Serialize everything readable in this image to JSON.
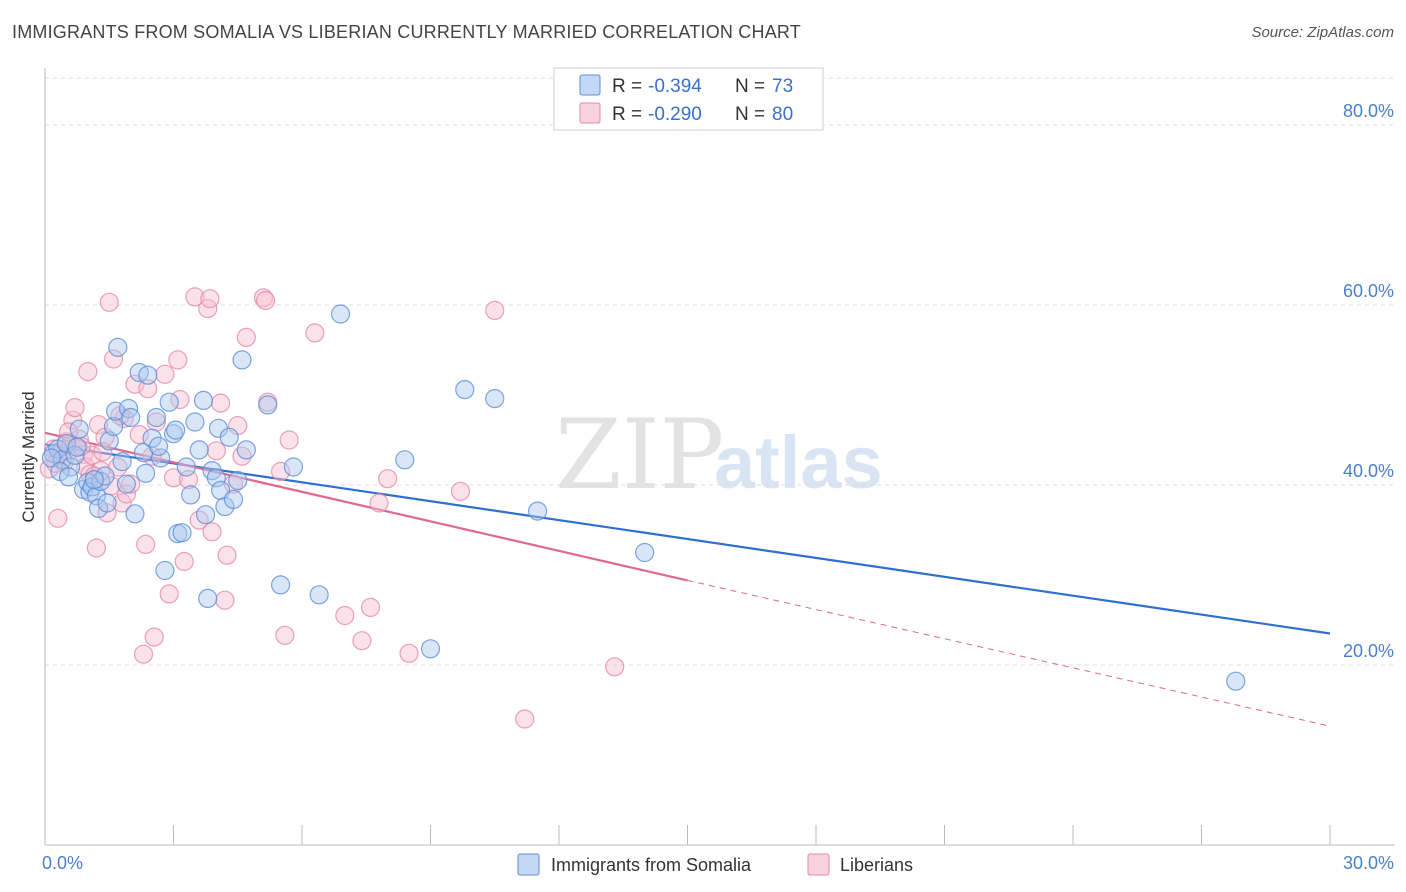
{
  "title": "IMMIGRANTS FROM SOMALIA VS LIBERIAN CURRENTLY MARRIED CORRELATION CHART",
  "source": "Source: ZipAtlas.com",
  "watermark": {
    "zip": "ZIP",
    "atlas": "atlas"
  },
  "colors": {
    "somalia_fill": "#aac8f0",
    "somalia_stroke": "#5b8fd6",
    "somalia_line": "#2f6fd0",
    "liberia_fill": "#f6bfd1",
    "liberia_stroke": "#e48aa8",
    "liberia_line": "#e0688f",
    "grid": "#dddddd",
    "tick_text": "#4a7fd0"
  },
  "legend": {
    "r_label": "R =",
    "n_label": "N =",
    "somalia": {
      "r": "-0.394",
      "n": "73"
    },
    "liberia": {
      "r": "-0.290",
      "n": "80"
    }
  },
  "chart_data": {
    "type": "scatter",
    "xlabel": "",
    "ylabel": "Currently Married",
    "xlim": [
      0,
      30
    ],
    "ylim": [
      0,
      85
    ],
    "x_tick_labels": [
      "0.0%",
      "30.0%"
    ],
    "y_tick_labels": [
      "20.0%",
      "40.0%",
      "60.0%",
      "80.0%"
    ],
    "y_ticks": [
      20,
      40,
      60,
      80
    ],
    "grid": true,
    "legend_position": "top-center",
    "series": [
      {
        "name": "Immigrants from Somalia",
        "r": -0.394,
        "n": 73,
        "trend": {
          "x0": 0,
          "y0": 44.5,
          "x1": 30,
          "y1": 23.5
        },
        "points": [
          [
            0.2,
            43.5
          ],
          [
            0.3,
            44.0
          ],
          [
            0.4,
            42.8
          ],
          [
            0.5,
            44.6
          ],
          [
            0.6,
            42.0
          ],
          [
            0.7,
            43.3
          ],
          [
            0.8,
            46.2
          ],
          [
            0.9,
            39.5
          ],
          [
            1.0,
            40.3
          ],
          [
            1.05,
            39.2
          ],
          [
            1.1,
            39.8
          ],
          [
            1.2,
            38.8
          ],
          [
            1.25,
            37.4
          ],
          [
            1.3,
            40.4
          ],
          [
            1.4,
            41.0
          ],
          [
            1.5,
            44.9
          ],
          [
            1.6,
            46.5
          ],
          [
            1.65,
            48.2
          ],
          [
            1.7,
            55.3
          ],
          [
            1.8,
            42.6
          ],
          [
            1.9,
            40.1
          ],
          [
            1.95,
            48.5
          ],
          [
            2.0,
            47.5
          ],
          [
            2.1,
            36.8
          ],
          [
            2.2,
            52.5
          ],
          [
            2.3,
            43.6
          ],
          [
            2.35,
            41.3
          ],
          [
            2.4,
            52.2
          ],
          [
            2.5,
            45.2
          ],
          [
            2.6,
            47.5
          ],
          [
            2.7,
            43.0
          ],
          [
            2.8,
            30.5
          ],
          [
            2.9,
            49.2
          ],
          [
            3.0,
            45.7
          ],
          [
            3.05,
            46.1
          ],
          [
            3.1,
            34.6
          ],
          [
            3.2,
            34.7
          ],
          [
            3.3,
            42.0
          ],
          [
            3.4,
            38.9
          ],
          [
            3.5,
            47.0
          ],
          [
            3.6,
            43.9
          ],
          [
            3.7,
            49.4
          ],
          [
            3.75,
            36.7
          ],
          [
            3.8,
            27.4
          ],
          [
            3.9,
            41.6
          ],
          [
            4.0,
            40.8
          ],
          [
            4.05,
            46.3
          ],
          [
            4.1,
            39.4
          ],
          [
            4.2,
            37.6
          ],
          [
            4.3,
            45.3
          ],
          [
            4.4,
            38.4
          ],
          [
            4.5,
            40.5
          ],
          [
            4.6,
            53.9
          ],
          [
            4.7,
            43.9
          ],
          [
            5.2,
            48.9
          ],
          [
            5.5,
            28.9
          ],
          [
            5.8,
            42.0
          ],
          [
            6.4,
            27.8
          ],
          [
            6.9,
            59.0
          ],
          [
            8.4,
            42.8
          ],
          [
            9.0,
            21.8
          ],
          [
            9.8,
            50.6
          ],
          [
            10.5,
            49.6
          ],
          [
            11.5,
            37.1
          ],
          [
            14.0,
            32.5
          ],
          [
            27.8,
            18.2
          ],
          [
            0.15,
            43.0
          ],
          [
            0.35,
            41.5
          ],
          [
            0.55,
            40.9
          ],
          [
            0.75,
            44.2
          ],
          [
            1.15,
            40.6
          ],
          [
            1.45,
            38.0
          ],
          [
            2.65,
            44.3
          ]
        ]
      },
      {
        "name": "Liberians",
        "r": -0.29,
        "n": 80,
        "trend": {
          "x0": 0,
          "y0": 45.8,
          "x1": 15,
          "y1": 29.4,
          "dash_x1": 30,
          "dash_y1": 13.2
        },
        "points": [
          [
            0.1,
            41.8
          ],
          [
            0.2,
            44.0
          ],
          [
            0.3,
            36.3
          ],
          [
            0.35,
            43.6
          ],
          [
            0.4,
            43.9
          ],
          [
            0.45,
            42.6
          ],
          [
            0.5,
            44.8
          ],
          [
            0.6,
            44.5
          ],
          [
            0.65,
            47.2
          ],
          [
            0.7,
            48.6
          ],
          [
            0.8,
            45.1
          ],
          [
            0.9,
            43.4
          ],
          [
            0.95,
            42.0
          ],
          [
            1.0,
            52.6
          ],
          [
            1.05,
            41.2
          ],
          [
            1.1,
            43.3
          ],
          [
            1.2,
            33.0
          ],
          [
            1.25,
            46.7
          ],
          [
            1.3,
            41.6
          ],
          [
            1.4,
            45.3
          ],
          [
            1.45,
            36.9
          ],
          [
            1.5,
            60.3
          ],
          [
            1.6,
            54.0
          ],
          [
            1.7,
            42.0
          ],
          [
            1.8,
            38.0
          ],
          [
            1.85,
            47.4
          ],
          [
            1.9,
            39.0
          ],
          [
            2.0,
            40.1
          ],
          [
            2.1,
            51.2
          ],
          [
            2.3,
            21.2
          ],
          [
            2.35,
            33.4
          ],
          [
            2.4,
            50.7
          ],
          [
            2.5,
            43.2
          ],
          [
            2.55,
            23.1
          ],
          [
            2.6,
            47.0
          ],
          [
            2.8,
            52.3
          ],
          [
            2.9,
            27.9
          ],
          [
            3.0,
            40.8
          ],
          [
            3.1,
            53.9
          ],
          [
            3.15,
            49.5
          ],
          [
            3.25,
            31.5
          ],
          [
            3.35,
            40.6
          ],
          [
            3.5,
            60.9
          ],
          [
            3.6,
            36.1
          ],
          [
            3.8,
            59.6
          ],
          [
            3.85,
            60.7
          ],
          [
            3.9,
            34.8
          ],
          [
            4.0,
            43.8
          ],
          [
            4.1,
            49.1
          ],
          [
            4.2,
            27.2
          ],
          [
            4.25,
            32.2
          ],
          [
            4.4,
            40.1
          ],
          [
            4.5,
            46.6
          ],
          [
            4.6,
            43.2
          ],
          [
            4.7,
            56.4
          ],
          [
            5.1,
            60.8
          ],
          [
            5.15,
            60.5
          ],
          [
            5.2,
            49.2
          ],
          [
            5.5,
            41.5
          ],
          [
            5.6,
            23.3
          ],
          [
            5.7,
            45.0
          ],
          [
            6.3,
            56.9
          ],
          [
            7.0,
            25.5
          ],
          [
            7.4,
            22.7
          ],
          [
            7.6,
            26.4
          ],
          [
            7.8,
            38.0
          ],
          [
            8.0,
            40.7
          ],
          [
            8.5,
            21.3
          ],
          [
            9.7,
            39.3
          ],
          [
            10.5,
            59.4
          ],
          [
            11.2,
            14.0
          ],
          [
            13.3,
            19.8
          ],
          [
            0.25,
            42.4
          ],
          [
            0.55,
            45.9
          ],
          [
            0.85,
            44.3
          ],
          [
            1.15,
            41.0
          ],
          [
            1.35,
            43.7
          ],
          [
            1.55,
            39.9
          ],
          [
            1.75,
            47.7
          ],
          [
            2.2,
            45.6
          ]
        ]
      }
    ]
  },
  "bottom_legend": [
    "Immigrants from Somalia",
    "Liberians"
  ]
}
